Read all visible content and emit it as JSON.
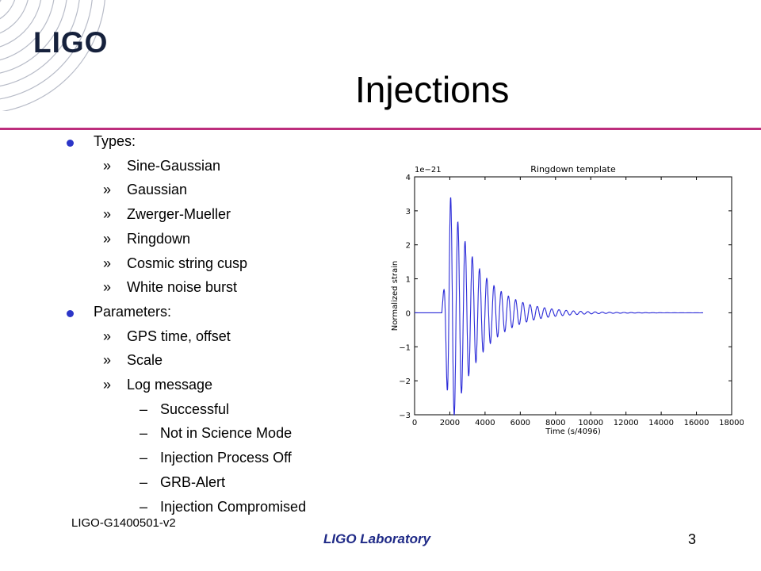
{
  "logo": {
    "text": "LIGO",
    "color": "#16213c"
  },
  "slide_title": "Injections",
  "accent_color": "#bd2e7d",
  "bullet_color": "#2c36c8",
  "items": [
    {
      "level": 1,
      "text": "Types:"
    },
    {
      "level": 2,
      "text": "Sine-Gaussian"
    },
    {
      "level": 2,
      "text": "Gaussian"
    },
    {
      "level": 2,
      "text": "Zwerger-Mueller"
    },
    {
      "level": 2,
      "text": "Ringdown"
    },
    {
      "level": 2,
      "text": "Cosmic string cusp"
    },
    {
      "level": 2,
      "text": "White noise burst"
    },
    {
      "level": 1,
      "text": "Parameters:"
    },
    {
      "level": 2,
      "text": "GPS time, offset"
    },
    {
      "level": 2,
      "text": "Scale"
    },
    {
      "level": 2,
      "text": "Log message"
    },
    {
      "level": 3,
      "text": "Successful"
    },
    {
      "level": 3,
      "text": "Not in Science Mode"
    },
    {
      "level": 3,
      "text": "Injection Process Off"
    },
    {
      "level": 3,
      "text": "GRB-Alert"
    },
    {
      "level": 3,
      "text": "Injection Compromised"
    }
  ],
  "markers": {
    "level2": "»",
    "level3": "–"
  },
  "doc_id": "LIGO-G1400501-v2",
  "footer": "LIGO Laboratory",
  "page_number": "3",
  "chart_data": {
    "type": "line",
    "title": "Ringdown template",
    "xlabel": "Time (s/4096)",
    "ylabel": "Normalized strain",
    "y_multiplier_label": "1e−21",
    "xlim": [
      0,
      18000
    ],
    "ylim": [
      -3,
      4
    ],
    "xticks": [
      0,
      2000,
      4000,
      6000,
      8000,
      10000,
      12000,
      14000,
      16000,
      18000
    ],
    "yticks": [
      -3,
      -2,
      -1,
      0,
      1,
      2,
      3,
      4
    ],
    "line_color": "#2a2ad8",
    "grid": false,
    "series": [
      {
        "model": "damped_sinusoid",
        "x_start": 0,
        "x_end": 16384,
        "flat_until": 1550,
        "peak_time": 2048,
        "peak_amplitude": 3.4,
        "trough_time": 2250,
        "trough_amplitude": -2.9,
        "period": 410,
        "decay_time": 1700
      }
    ]
  }
}
